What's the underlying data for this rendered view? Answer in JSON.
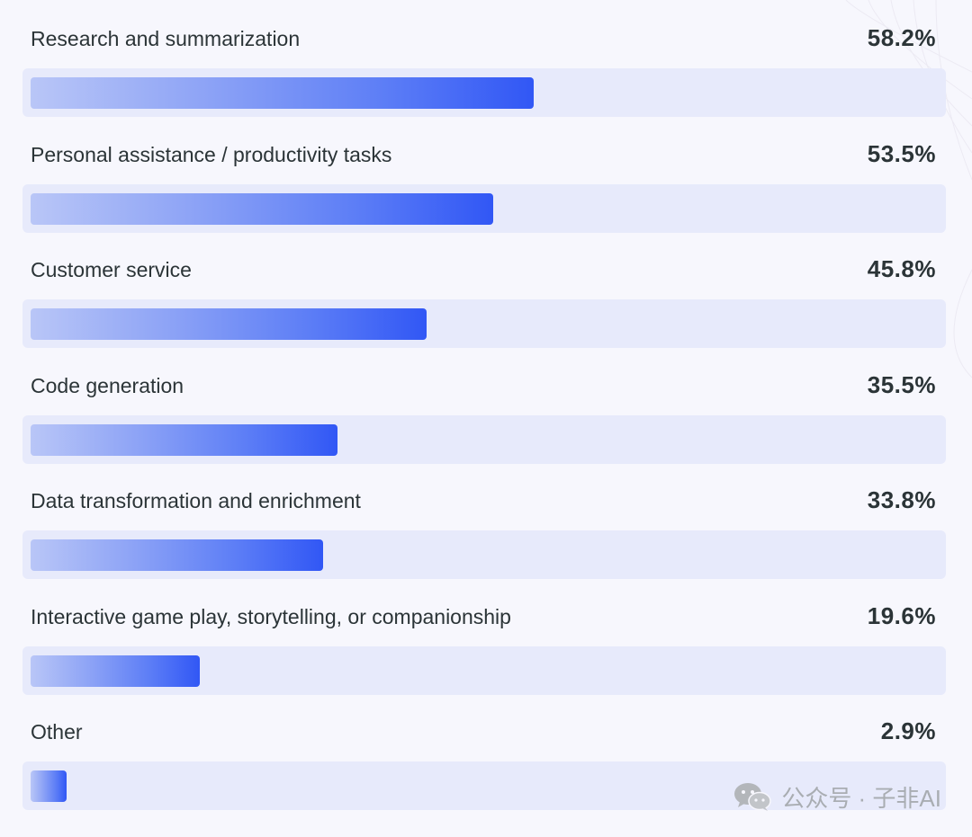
{
  "chart_data": {
    "type": "bar",
    "orientation": "horizontal",
    "categories": [
      "Research and summarization",
      "Personal assistance / productivity tasks",
      "Customer service",
      "Code generation",
      "Data transformation and enrichment",
      "Interactive game play, storytelling, or companionship",
      "Other"
    ],
    "values": [
      58.2,
      53.5,
      45.8,
      35.5,
      33.8,
      19.6,
      2.9
    ],
    "value_labels": [
      "58.2%",
      "53.5%",
      "45.8%",
      "35.5%",
      "33.8%",
      "19.6%",
      "2.9%"
    ],
    "unit": "%",
    "title": "",
    "xlabel": "",
    "ylabel": "",
    "xlim": [
      0,
      100
    ],
    "grid": false,
    "colors": {
      "bar_start": "#b9c6f7",
      "bar_end": "#3157f5",
      "track": "#e7eafb",
      "background": "#f7f7fd",
      "text": "#2b3437"
    }
  },
  "watermark": {
    "icon": "wechat-icon",
    "text": "公众号 · 子非AI"
  }
}
